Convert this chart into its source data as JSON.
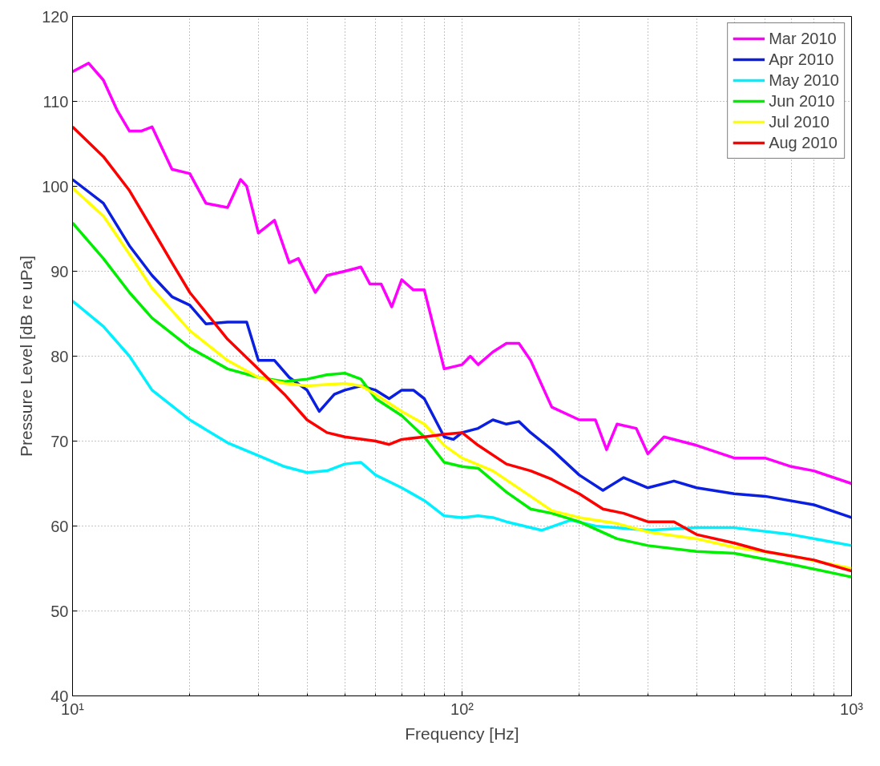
{
  "chart_data": {
    "type": "line",
    "xlabel": "Frequency [Hz]",
    "ylabel": "Pressure Level [dB re uPa]",
    "log": "x",
    "grid": true,
    "legend": "top right",
    "line_style": "solid",
    "marker": "none",
    "xlim": [
      10,
      1000
    ],
    "xticks": [
      {
        "value": 10,
        "label": "10¹"
      },
      {
        "value": 100,
        "label": "10²"
      },
      {
        "value": 1000,
        "label": "10³"
      }
    ],
    "ylim": [
      40,
      120
    ],
    "yticks": [
      40,
      50,
      60,
      70,
      80,
      90,
      100,
      110,
      120
    ],
    "series": [
      {
        "name": "Mar 2010",
        "color": "#ff00ff",
        "x": [
          10,
          11,
          12,
          13,
          14,
          15,
          16,
          18,
          20,
          22,
          25,
          27,
          28,
          30,
          33,
          36,
          38,
          42,
          45,
          50,
          55,
          58,
          62,
          66,
          70,
          75,
          80,
          90,
          100,
          105,
          110,
          120,
          130,
          140,
          150,
          170,
          200,
          220,
          235,
          250,
          280,
          300,
          330,
          400,
          500,
          600,
          700,
          800,
          1000
        ],
        "values": [
          113.5,
          114.5,
          112.5,
          109,
          106.5,
          106.5,
          107,
          102,
          101.5,
          98,
          97.5,
          100.8,
          100,
          94.5,
          96,
          91,
          91.5,
          87.5,
          89.5,
          90,
          90.5,
          88.5,
          88.5,
          85.8,
          89,
          87.8,
          87.8,
          78.5,
          79,
          80,
          79,
          80.5,
          81.5,
          81.5,
          79.5,
          74,
          72.5,
          72.5,
          69,
          72,
          71.5,
          68.5,
          70.5,
          69.5,
          68,
          68,
          67,
          66.5,
          65
        ]
      },
      {
        "name": "Apr 2010",
        "color": "#0a1fe0",
        "x": [
          10,
          12,
          14,
          16,
          18,
          20,
          22,
          25,
          28,
          30,
          33,
          36,
          40,
          43,
          47,
          50,
          55,
          60,
          65,
          70,
          75,
          80,
          90,
          95,
          100,
          110,
          120,
          130,
          140,
          150,
          170,
          200,
          230,
          260,
          300,
          350,
          400,
          500,
          600,
          800,
          1000
        ],
        "values": [
          100.8,
          98,
          93,
          89.5,
          87,
          86,
          83.8,
          84,
          84,
          79.5,
          79.5,
          77.5,
          76,
          73.5,
          75.5,
          76,
          76.5,
          76,
          75,
          76,
          76,
          75,
          70.5,
          70.2,
          71,
          71.5,
          72.5,
          72,
          72.3,
          71,
          69,
          66,
          64.2,
          65.7,
          64.5,
          65.3,
          64.5,
          63.8,
          63.5,
          62.5,
          61
        ]
      },
      {
        "name": "May 2010",
        "color": "#00f0ff",
        "x": [
          10,
          12,
          14,
          16,
          20,
          25,
          30,
          35,
          40,
          45,
          50,
          55,
          60,
          70,
          80,
          90,
          100,
          110,
          120,
          130,
          160,
          190,
          220,
          300,
          400,
          500,
          700,
          1000
        ],
        "values": [
          86.5,
          83.5,
          80,
          76,
          72.5,
          69.8,
          68.3,
          67,
          66.3,
          66.5,
          67.3,
          67.5,
          66,
          64.5,
          63,
          61.2,
          61,
          61.2,
          61,
          60.5,
          59.5,
          60.7,
          60,
          59.5,
          59.8,
          59.8,
          59,
          57.7
        ]
      },
      {
        "name": "Jun 2010",
        "color": "#00ee00",
        "x": [
          10,
          12,
          14,
          16,
          20,
          25,
          30,
          35,
          40,
          45,
          50,
          55,
          60,
          70,
          80,
          90,
          100,
          110,
          130,
          150,
          170,
          200,
          250,
          300,
          400,
          500,
          700,
          1000
        ],
        "values": [
          95.7,
          91.5,
          87.5,
          84.5,
          81,
          78.5,
          77.5,
          77,
          77.3,
          77.8,
          78,
          77.3,
          75,
          73,
          70.5,
          67.5,
          67,
          66.8,
          64,
          62,
          61.5,
          60.5,
          58.5,
          57.7,
          57,
          56.8,
          55.5,
          54
        ]
      },
      {
        "name": "Jul 2010",
        "color": "#ffff00",
        "x": [
          10,
          12,
          14,
          16,
          20,
          25,
          30,
          35,
          40,
          50,
          55,
          60,
          70,
          80,
          90,
          100,
          120,
          150,
          170,
          200,
          250,
          300,
          400,
          500,
          700,
          1000
        ],
        "values": [
          99.8,
          96.5,
          92,
          88,
          83,
          79.5,
          77.5,
          76.8,
          76.5,
          76.8,
          76.5,
          75.5,
          73.5,
          72,
          69.5,
          68,
          66.5,
          63.5,
          61.8,
          61,
          60.3,
          59.3,
          58.5,
          57.5,
          56.5,
          55
        ]
      },
      {
        "name": "Aug 2010",
        "color": "#ff0000",
        "x": [
          10,
          12,
          14,
          16,
          18,
          20,
          25,
          30,
          35,
          40,
          45,
          50,
          60,
          65,
          70,
          80,
          90,
          100,
          110,
          130,
          150,
          170,
          200,
          230,
          260,
          300,
          350,
          400,
          500,
          600,
          800,
          1000
        ],
        "values": [
          107,
          103.5,
          99.5,
          95,
          91,
          87.5,
          82,
          78.5,
          75.5,
          72.5,
          71,
          70.5,
          70,
          69.6,
          70.2,
          70.5,
          70.8,
          71,
          69.5,
          67.3,
          66.5,
          65.5,
          63.8,
          62,
          61.5,
          60.5,
          60.5,
          59,
          58,
          57,
          56,
          54.7
        ]
      }
    ]
  }
}
